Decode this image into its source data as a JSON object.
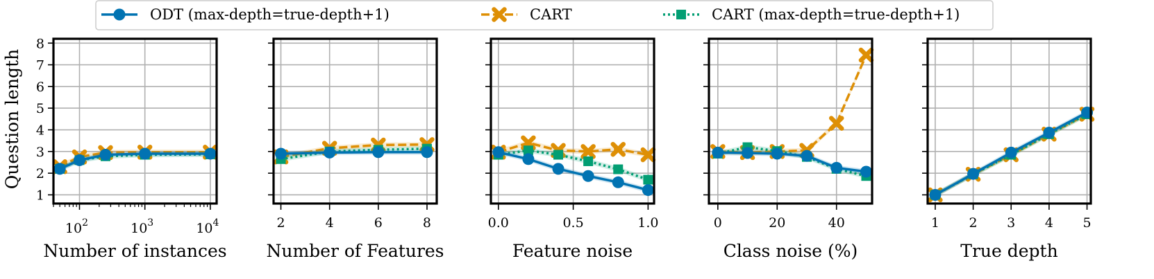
{
  "legend": {
    "entries": [
      {
        "label": "ODT (max-depth=true-depth+1)",
        "color": "#0173b2",
        "marker": "circle",
        "dash": "solid"
      },
      {
        "label": "CART",
        "color": "#de8f05",
        "marker": "x",
        "dash": "dashed"
      },
      {
        "label": "CART (max-depth=true-depth+1)",
        "color": "#029e73",
        "marker": "square",
        "dash": "dotted"
      }
    ]
  },
  "shared_ylabel": "Question length",
  "chart_data": [
    {
      "type": "line",
      "xlabel": "Number of instances",
      "xscale": "log",
      "xlim": [
        40,
        12500
      ],
      "xticks": [
        100,
        1000,
        10000
      ],
      "xticklabels": [
        {
          "base": "10",
          "exp": "2"
        },
        {
          "base": "10",
          "exp": "3"
        },
        {
          "base": "10",
          "exp": "4"
        }
      ],
      "ylabel": "Question length",
      "ylim": [
        0.6,
        8.2
      ],
      "yticks": [
        "1",
        "2",
        "3",
        "4",
        "5",
        "6",
        "7",
        "8"
      ],
      "grid": true,
      "x": [
        50,
        100,
        250,
        1000,
        10000
      ],
      "series": [
        {
          "name": "ODT (max-depth=true-depth+1)",
          "values": [
            2.2,
            2.6,
            2.85,
            2.9,
            2.9
          ]
        },
        {
          "name": "CART",
          "values": [
            2.3,
            2.75,
            2.95,
            2.97,
            2.97
          ]
        },
        {
          "name": "CART (max-depth=true-depth+1)",
          "values": [
            2.2,
            2.6,
            2.78,
            2.85,
            2.87
          ]
        }
      ]
    },
    {
      "type": "line",
      "xlabel": "Number of Features",
      "xscale": "linear",
      "xlim": [
        1.7,
        8.4
      ],
      "xticks": [
        2,
        4,
        6,
        8
      ],
      "xticklabels": [
        "2",
        "4",
        "6",
        "8"
      ],
      "ylim": [
        0.6,
        8.2
      ],
      "grid": true,
      "x": [
        2,
        4,
        6,
        8
      ],
      "series": [
        {
          "name": "ODT (max-depth=true-depth+1)",
          "values": [
            2.9,
            2.95,
            2.97,
            2.97
          ]
        },
        {
          "name": "CART",
          "values": [
            2.75,
            3.15,
            3.3,
            3.32
          ]
        },
        {
          "name": "CART (max-depth=true-depth+1)",
          "values": [
            2.65,
            3.0,
            3.08,
            3.13
          ]
        }
      ]
    },
    {
      "type": "line",
      "xlabel": "Feature noise",
      "xscale": "linear",
      "xlim": [
        -0.05,
        1.04
      ],
      "xticks": [
        0,
        0.5,
        1
      ],
      "xticklabels": [
        "0.0",
        "0.5",
        "1.0"
      ],
      "ylim": [
        0.6,
        8.2
      ],
      "grid": true,
      "x": [
        0,
        0.2,
        0.4,
        0.6,
        0.8,
        1.0
      ],
      "series": [
        {
          "name": "ODT (max-depth=true-depth+1)",
          "values": [
            2.97,
            2.65,
            2.2,
            1.87,
            1.58,
            1.22
          ]
        },
        {
          "name": "CART",
          "values": [
            2.97,
            3.4,
            3.05,
            3.0,
            3.1,
            2.85
          ]
        },
        {
          "name": "CART (max-depth=true-depth+1)",
          "values": [
            2.85,
            3.05,
            2.85,
            2.55,
            2.18,
            1.7
          ]
        }
      ]
    },
    {
      "type": "line",
      "xlabel": "Class noise (%)",
      "xscale": "linear",
      "xlim": [
        -3,
        52
      ],
      "xticks": [
        0,
        20,
        40
      ],
      "xticklabels": [
        "0",
        "20",
        "40"
      ],
      "ylim": [
        0.6,
        8.2
      ],
      "grid": true,
      "x": [
        0,
        10,
        20,
        30,
        40,
        50
      ],
      "series": [
        {
          "name": "ODT (max-depth=true-depth+1)",
          "values": [
            2.95,
            2.93,
            2.9,
            2.8,
            2.25,
            2.07
          ]
        },
        {
          "name": "CART",
          "values": [
            3.0,
            2.95,
            3.0,
            3.05,
            4.3,
            7.45
          ]
        },
        {
          "name": "CART (max-depth=true-depth+1)",
          "values": [
            2.9,
            3.2,
            3.02,
            2.75,
            2.2,
            1.87
          ]
        }
      ]
    },
    {
      "type": "line",
      "xlabel": "True depth",
      "xscale": "linear",
      "xlim": [
        0.8,
        5.1
      ],
      "xticks": [
        1,
        2,
        3,
        4,
        5
      ],
      "xticklabels": [
        "1",
        "2",
        "3",
        "4",
        "5"
      ],
      "ylim": [
        0.6,
        8.2
      ],
      "grid": true,
      "x": [
        1,
        2,
        3,
        4,
        5
      ],
      "series": [
        {
          "name": "ODT (max-depth=true-depth+1)",
          "values": [
            1.0,
            1.97,
            2.95,
            3.87,
            4.8
          ]
        },
        {
          "name": "CART",
          "values": [
            1.0,
            1.95,
            2.85,
            3.8,
            4.72
          ]
        },
        {
          "name": "CART (max-depth=true-depth+1)",
          "values": [
            1.0,
            1.95,
            2.85,
            3.8,
            4.72
          ]
        }
      ]
    }
  ]
}
